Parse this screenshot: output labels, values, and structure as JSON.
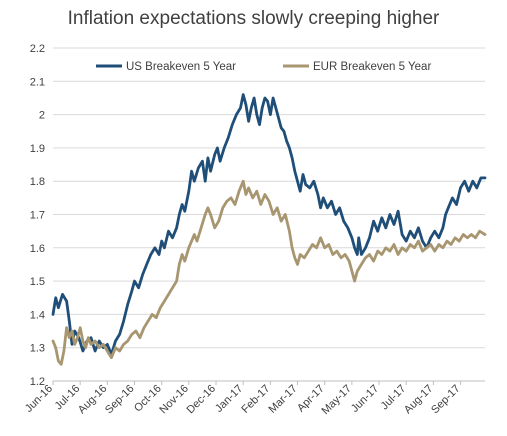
{
  "chart_data": {
    "type": "line",
    "title": "Inflation expectations slowly creeping higher",
    "xlabel": "",
    "ylabel": "",
    "x_ticks": [
      "Jun-16",
      "Jul-16",
      "Aug-16",
      "Sep-16",
      "Oct-16",
      "Nov-16",
      "Dec-16",
      "Jan-17",
      "Feb-17",
      "Mar-17",
      "Apr-17",
      "May-17",
      "Jun-17",
      "Jul-17",
      "Aug-17",
      "Sep-17"
    ],
    "xlim": [
      0,
      15.9
    ],
    "ylim": [
      1.2,
      2.2
    ],
    "y_ticks": [
      1.2,
      1.3,
      1.4,
      1.5,
      1.6,
      1.7,
      1.8,
      1.9,
      2.0,
      2.1,
      2.2
    ],
    "y_tick_labels": [
      "1.2",
      "1.3",
      "1.4",
      "1.5",
      "1.6",
      "1.7",
      "1.8",
      "1.9",
      "2",
      "2.1",
      "2.2"
    ],
    "grid": true,
    "legend_position": "top",
    "series": [
      {
        "name": "US Breakeven 5 Year",
        "color": "#1F4E79",
        "points": [
          [
            0,
            1.4
          ],
          [
            0.1,
            1.45
          ],
          [
            0.2,
            1.42
          ],
          [
            0.35,
            1.46
          ],
          [
            0.5,
            1.44
          ],
          [
            0.6,
            1.38
          ],
          [
            0.7,
            1.31
          ],
          [
            0.8,
            1.35
          ],
          [
            0.95,
            1.33
          ],
          [
            1.1,
            1.29
          ],
          [
            1.25,
            1.32
          ],
          [
            1.4,
            1.33
          ],
          [
            1.55,
            1.29
          ],
          [
            1.7,
            1.32
          ],
          [
            1.85,
            1.3
          ],
          [
            2.0,
            1.31
          ],
          [
            2.15,
            1.28
          ],
          [
            2.3,
            1.32
          ],
          [
            2.45,
            1.34
          ],
          [
            2.6,
            1.38
          ],
          [
            2.75,
            1.43
          ],
          [
            2.9,
            1.47
          ],
          [
            3.0,
            1.5
          ],
          [
            3.15,
            1.48
          ],
          [
            3.3,
            1.52
          ],
          [
            3.45,
            1.55
          ],
          [
            3.6,
            1.58
          ],
          [
            3.75,
            1.6
          ],
          [
            3.9,
            1.58
          ],
          [
            4.0,
            1.62
          ],
          [
            4.1,
            1.6
          ],
          [
            4.25,
            1.65
          ],
          [
            4.4,
            1.63
          ],
          [
            4.55,
            1.66
          ],
          [
            4.65,
            1.7
          ],
          [
            4.75,
            1.73
          ],
          [
            4.85,
            1.71
          ],
          [
            5.0,
            1.77
          ],
          [
            5.1,
            1.83
          ],
          [
            5.2,
            1.8
          ],
          [
            5.35,
            1.84
          ],
          [
            5.5,
            1.86
          ],
          [
            5.6,
            1.8
          ],
          [
            5.7,
            1.87
          ],
          [
            5.8,
            1.83
          ],
          [
            5.95,
            1.88
          ],
          [
            6.05,
            1.9
          ],
          [
            6.15,
            1.86
          ],
          [
            6.3,
            1.9
          ],
          [
            6.45,
            1.93
          ],
          [
            6.6,
            1.97
          ],
          [
            6.75,
            2.0
          ],
          [
            6.9,
            2.02
          ],
          [
            7.0,
            2.06
          ],
          [
            7.1,
            2.03
          ],
          [
            7.2,
            1.98
          ],
          [
            7.3,
            2.02
          ],
          [
            7.4,
            2.05
          ],
          [
            7.5,
            2.0
          ],
          [
            7.6,
            1.97
          ],
          [
            7.7,
            2.02
          ],
          [
            7.8,
            2.05
          ],
          [
            7.9,
            2.04
          ],
          [
            8.0,
            2.0
          ],
          [
            8.1,
            2.05
          ],
          [
            8.2,
            2.02
          ],
          [
            8.3,
            1.99
          ],
          [
            8.4,
            1.96
          ],
          [
            8.5,
            1.95
          ],
          [
            8.6,
            1.92
          ],
          [
            8.7,
            1.9
          ],
          [
            8.8,
            1.87
          ],
          [
            8.9,
            1.83
          ],
          [
            9.0,
            1.8
          ],
          [
            9.1,
            1.77
          ],
          [
            9.2,
            1.82
          ],
          [
            9.3,
            1.79
          ],
          [
            9.45,
            1.78
          ],
          [
            9.6,
            1.8
          ],
          [
            9.75,
            1.76
          ],
          [
            9.85,
            1.72
          ],
          [
            9.95,
            1.75
          ],
          [
            10.1,
            1.72
          ],
          [
            10.25,
            1.74
          ],
          [
            10.4,
            1.7
          ],
          [
            10.55,
            1.72
          ],
          [
            10.7,
            1.68
          ],
          [
            10.85,
            1.66
          ],
          [
            11.0,
            1.63
          ],
          [
            11.1,
            1.6
          ],
          [
            11.2,
            1.58
          ],
          [
            11.25,
            1.63
          ],
          [
            11.35,
            1.58
          ],
          [
            11.5,
            1.6
          ],
          [
            11.65,
            1.63
          ],
          [
            11.8,
            1.68
          ],
          [
            11.95,
            1.65
          ],
          [
            12.1,
            1.69
          ],
          [
            12.25,
            1.66
          ],
          [
            12.4,
            1.7
          ],
          [
            12.55,
            1.67
          ],
          [
            12.7,
            1.71
          ],
          [
            12.85,
            1.64
          ],
          [
            13.0,
            1.62
          ],
          [
            13.15,
            1.65
          ],
          [
            13.3,
            1.63
          ],
          [
            13.45,
            1.66
          ],
          [
            13.6,
            1.62
          ],
          [
            13.75,
            1.6
          ],
          [
            13.9,
            1.63
          ],
          [
            14.05,
            1.65
          ],
          [
            14.2,
            1.63
          ],
          [
            14.35,
            1.66
          ],
          [
            14.45,
            1.7
          ],
          [
            14.55,
            1.72
          ],
          [
            14.7,
            1.75
          ],
          [
            14.85,
            1.73
          ],
          [
            15.0,
            1.78
          ],
          [
            15.15,
            1.8
          ],
          [
            15.3,
            1.77
          ],
          [
            15.45,
            1.8
          ],
          [
            15.6,
            1.78
          ],
          [
            15.75,
            1.81
          ],
          [
            15.9,
            1.81
          ]
        ]
      },
      {
        "name": "EUR Breakeven 5 Year",
        "color": "#A89670",
        "points": [
          [
            0,
            1.32
          ],
          [
            0.1,
            1.3
          ],
          [
            0.2,
            1.26
          ],
          [
            0.3,
            1.25
          ],
          [
            0.4,
            1.29
          ],
          [
            0.5,
            1.36
          ],
          [
            0.6,
            1.33
          ],
          [
            0.7,
            1.35
          ],
          [
            0.8,
            1.31
          ],
          [
            0.9,
            1.33
          ],
          [
            1.0,
            1.36
          ],
          [
            1.1,
            1.32
          ],
          [
            1.2,
            1.3
          ],
          [
            1.3,
            1.33
          ],
          [
            1.4,
            1.31
          ],
          [
            1.55,
            1.32
          ],
          [
            1.7,
            1.3
          ],
          [
            1.85,
            1.31
          ],
          [
            2.0,
            1.29
          ],
          [
            2.15,
            1.27
          ],
          [
            2.3,
            1.3
          ],
          [
            2.45,
            1.29
          ],
          [
            2.6,
            1.31
          ],
          [
            2.75,
            1.32
          ],
          [
            2.9,
            1.34
          ],
          [
            3.05,
            1.35
          ],
          [
            3.2,
            1.33
          ],
          [
            3.35,
            1.36
          ],
          [
            3.5,
            1.38
          ],
          [
            3.65,
            1.4
          ],
          [
            3.8,
            1.39
          ],
          [
            3.95,
            1.42
          ],
          [
            4.1,
            1.44
          ],
          [
            4.25,
            1.46
          ],
          [
            4.4,
            1.48
          ],
          [
            4.55,
            1.5
          ],
          [
            4.65,
            1.55
          ],
          [
            4.75,
            1.58
          ],
          [
            4.85,
            1.56
          ],
          [
            5.0,
            1.6
          ],
          [
            5.1,
            1.62
          ],
          [
            5.2,
            1.64
          ],
          [
            5.3,
            1.62
          ],
          [
            5.45,
            1.66
          ],
          [
            5.6,
            1.7
          ],
          [
            5.7,
            1.72
          ],
          [
            5.8,
            1.7
          ],
          [
            5.95,
            1.66
          ],
          [
            6.1,
            1.68
          ],
          [
            6.25,
            1.72
          ],
          [
            6.4,
            1.74
          ],
          [
            6.55,
            1.75
          ],
          [
            6.7,
            1.73
          ],
          [
            6.85,
            1.77
          ],
          [
            7.0,
            1.8
          ],
          [
            7.1,
            1.76
          ],
          [
            7.2,
            1.78
          ],
          [
            7.35,
            1.75
          ],
          [
            7.5,
            1.77
          ],
          [
            7.65,
            1.73
          ],
          [
            7.8,
            1.76
          ],
          [
            7.95,
            1.74
          ],
          [
            8.1,
            1.7
          ],
          [
            8.25,
            1.72
          ],
          [
            8.4,
            1.68
          ],
          [
            8.55,
            1.7
          ],
          [
            8.7,
            1.65
          ],
          [
            8.8,
            1.6
          ],
          [
            8.9,
            1.57
          ],
          [
            9.0,
            1.55
          ],
          [
            9.1,
            1.58
          ],
          [
            9.25,
            1.57
          ],
          [
            9.4,
            1.59
          ],
          [
            9.55,
            1.61
          ],
          [
            9.7,
            1.6
          ],
          [
            9.85,
            1.63
          ],
          [
            10.0,
            1.6
          ],
          [
            10.15,
            1.61
          ],
          [
            10.3,
            1.58
          ],
          [
            10.45,
            1.59
          ],
          [
            10.6,
            1.57
          ],
          [
            10.75,
            1.58
          ],
          [
            10.9,
            1.56
          ],
          [
            11.0,
            1.53
          ],
          [
            11.1,
            1.5
          ],
          [
            11.2,
            1.53
          ],
          [
            11.35,
            1.55
          ],
          [
            11.5,
            1.57
          ],
          [
            11.65,
            1.58
          ],
          [
            11.8,
            1.56
          ],
          [
            11.95,
            1.59
          ],
          [
            12.1,
            1.58
          ],
          [
            12.25,
            1.6
          ],
          [
            12.4,
            1.59
          ],
          [
            12.55,
            1.61
          ],
          [
            12.7,
            1.58
          ],
          [
            12.85,
            1.6
          ],
          [
            13.0,
            1.59
          ],
          [
            13.15,
            1.61
          ],
          [
            13.3,
            1.6
          ],
          [
            13.45,
            1.62
          ],
          [
            13.6,
            1.59
          ],
          [
            13.75,
            1.6
          ],
          [
            13.9,
            1.61
          ],
          [
            14.05,
            1.59
          ],
          [
            14.2,
            1.61
          ],
          [
            14.35,
            1.6
          ],
          [
            14.5,
            1.62
          ],
          [
            14.65,
            1.61
          ],
          [
            14.8,
            1.63
          ],
          [
            14.95,
            1.62
          ],
          [
            15.1,
            1.64
          ],
          [
            15.25,
            1.63
          ],
          [
            15.4,
            1.64
          ],
          [
            15.55,
            1.63
          ],
          [
            15.7,
            1.65
          ],
          [
            15.9,
            1.64
          ]
        ]
      }
    ]
  }
}
